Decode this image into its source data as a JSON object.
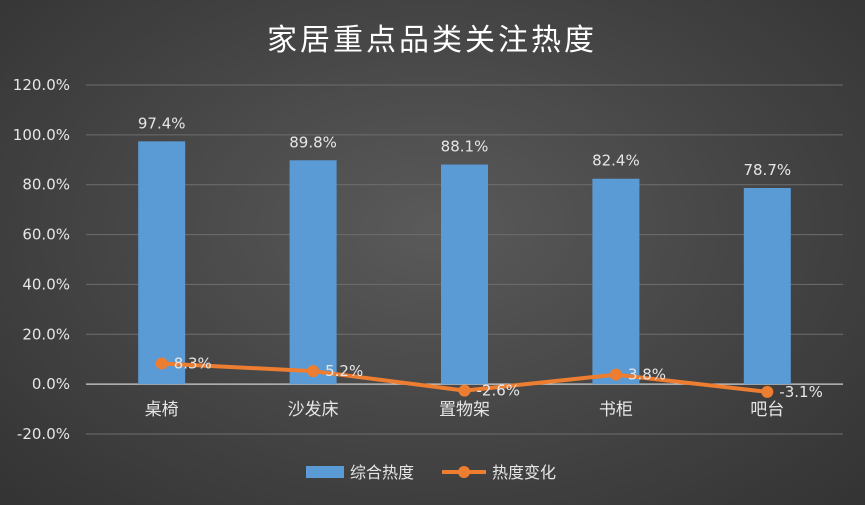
{
  "chart_data": {
    "type": "bar",
    "title": "家居重点品类关注热度",
    "categories": [
      "桌椅",
      "沙发床",
      "置物架",
      "书柜",
      "吧台"
    ],
    "ylim": [
      -20,
      120
    ],
    "yticks": [
      "120.0%",
      "100.0%",
      "80.0%",
      "60.0%",
      "40.0%",
      "20.0%",
      "0.0%",
      "-20.0%"
    ],
    "grid": true,
    "legend_position": "bottom",
    "series": [
      {
        "name": "综合热度",
        "kind": "bar",
        "color": "#5b9bd5",
        "values": [
          97.4,
          89.8,
          88.1,
          82.4,
          78.7
        ],
        "labels": [
          "97.4%",
          "89.8%",
          "88.1%",
          "82.4%",
          "78.7%"
        ]
      },
      {
        "name": "热度变化",
        "kind": "line",
        "color": "#ed7d31",
        "values": [
          8.3,
          5.2,
          -2.6,
          3.8,
          -3.1
        ],
        "labels": [
          "8.3%",
          "5.2%",
          "-2.6%",
          "3.8%",
          "-3.1%"
        ]
      }
    ]
  }
}
